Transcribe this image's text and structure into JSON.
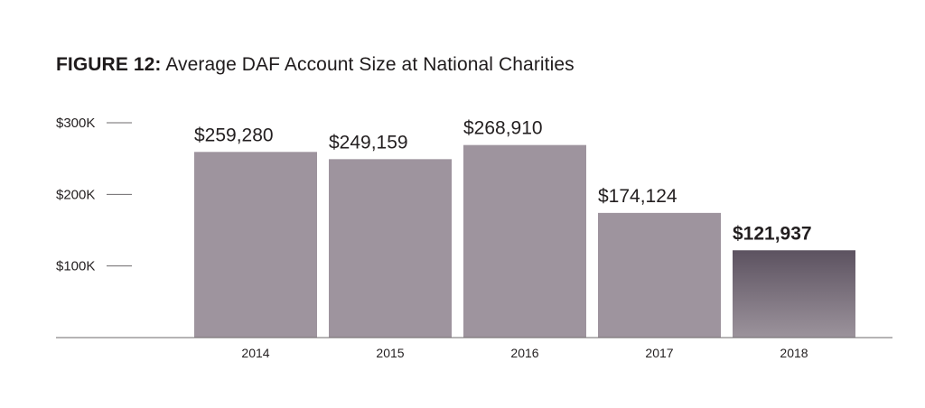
{
  "title": {
    "prefix": "FIGURE 12:",
    "text": "Average DAF Account Size at National Charities"
  },
  "colors": {
    "bar": "#9e949e",
    "highlight_top": "#5c5260",
    "highlight_bottom": "#9c939c",
    "axis": "#6d6a6b",
    "text": "#231f20"
  },
  "chart_data": {
    "type": "bar",
    "title": "Average DAF Account Size at National Charities",
    "categories": [
      "2014",
      "2015",
      "2016",
      "2017",
      "2018"
    ],
    "values": [
      259280,
      249159,
      268910,
      174124,
      121937
    ],
    "data_labels": [
      "$259,280",
      "$249,159",
      "$268,910",
      "$174,124",
      "$121,937"
    ],
    "highlight_index": 4,
    "yticks": [
      100000,
      200000,
      300000
    ],
    "ytick_labels": [
      "$100K",
      "$200K",
      "$300K"
    ],
    "ylim": [
      0,
      300000
    ],
    "xlabel": "",
    "ylabel": "",
    "grid": false,
    "legend": "none"
  }
}
